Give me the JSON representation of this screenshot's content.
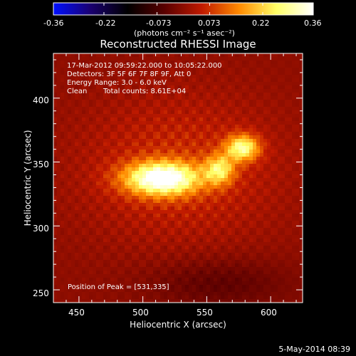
{
  "colorbar": {
    "ticks": [
      "-0.36",
      "-0.22",
      "-0.073",
      "0.073",
      "0.22",
      "0.36"
    ],
    "unit": "(photons cm⁻² s⁻¹ asec⁻²)",
    "min": -0.36,
    "max": 0.36
  },
  "title": "Reconstructed RHESSI Image",
  "info": {
    "line1": "17-Mar-2012 09:59:22.000 to 10:05:22.000",
    "line2": "Detectors: 3F 5F 6F 7F 8F 9F, Att 0",
    "line3": "Energy Range: 3.0 - 6.0 keV",
    "line4_a": "Clean",
    "line4_b": "Total counts: 8.61E+04"
  },
  "peak_label": "Position of Peak = [531,335]",
  "timestamp": "5-May-2014 08:39",
  "chart_data": {
    "type": "heatmap",
    "title": "Reconstructed RHESSI Image",
    "xlabel": "Heliocentric X (arcsec)",
    "ylabel": "Heliocentric Y (arcsec)",
    "xlim": [
      430,
      625
    ],
    "ylim": [
      240,
      435
    ],
    "xticks": [
      450,
      500,
      550,
      600
    ],
    "yticks": [
      250,
      300,
      350,
      400
    ],
    "peak": [
      531,
      335
    ],
    "peak_value": 0.36,
    "sources": [
      {
        "x": 515,
        "y": 337,
        "sx": 20,
        "sy": 9,
        "amp": 0.36
      },
      {
        "x": 560,
        "y": 344,
        "sx": 8,
        "sy": 8,
        "amp": 0.2
      },
      {
        "x": 578,
        "y": 361,
        "sx": 9,
        "sy": 7,
        "amp": 0.26
      }
    ],
    "colormap": [
      "#0010ff",
      "#1a0070",
      "#000000",
      "#5a0000",
      "#c01a00",
      "#ff8a00",
      "#ffff66",
      "#ffffff"
    ]
  }
}
